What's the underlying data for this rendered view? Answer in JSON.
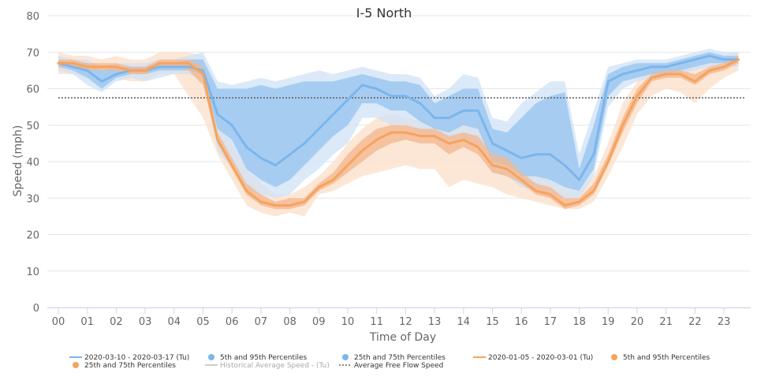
{
  "chart_data": {
    "type": "line",
    "title": "I-5 North",
    "xlabel": "Time of Day",
    "ylabel": "Speed (mph)",
    "xlim": [
      0,
      24
    ],
    "ylim": [
      0,
      80
    ],
    "yticks": [
      0,
      10,
      20,
      30,
      40,
      50,
      60,
      70,
      80
    ],
    "xtick_labels": [
      "00",
      "01",
      "02",
      "03",
      "04",
      "05",
      "06",
      "07",
      "08",
      "09",
      "10",
      "11",
      "12",
      "13",
      "14",
      "15",
      "16",
      "17",
      "18",
      "19",
      "20",
      "21",
      "22",
      "23"
    ],
    "grid": "horizontal",
    "reference_line": {
      "name": "Average Free Flow Speed",
      "value": 57.5,
      "color": "#666666"
    },
    "colors": {
      "blue": "#7cb5ec",
      "blue_band_outer": "#cfe2f6",
      "blue_band_inner": "#9cc8f0",
      "orange": "#f7a35c",
      "orange_band_outer": "#fbe1cc",
      "orange_band_inner": "#f4b891",
      "historical": "#cccccc"
    },
    "series": [
      {
        "name": "2020-03-10 - 2020-03-17 (Tu)",
        "color": "#7cb5ec",
        "x": [
          0,
          0.5,
          1,
          1.5,
          2,
          2.5,
          3,
          3.5,
          4,
          4.5,
          5,
          5.5,
          6,
          6.5,
          7,
          7.5,
          8,
          8.5,
          9,
          9.5,
          10,
          10.5,
          11,
          11.5,
          12,
          12.5,
          13,
          13.5,
          14,
          14.5,
          15,
          15.5,
          16,
          16.5,
          17,
          17.5,
          18,
          18.5,
          19,
          19.5,
          20,
          20.5,
          21,
          21.5,
          22,
          22.5,
          23,
          23.5
        ],
        "values": [
          67,
          66,
          65,
          62,
          64,
          65,
          65,
          66,
          66,
          66,
          65,
          53,
          50,
          44,
          41,
          39,
          42,
          45,
          49,
          53,
          57,
          61,
          60,
          58,
          58,
          56,
          52,
          52,
          54,
          54,
          45,
          43,
          41,
          42,
          42,
          39,
          35,
          42,
          62,
          64,
          65,
          66,
          66,
          67,
          68,
          69,
          68,
          68
        ],
        "p5": [
          65,
          64,
          61,
          59,
          62,
          63,
          62,
          63,
          64,
          64,
          62,
          43,
          38,
          32,
          31,
          30,
          31,
          35,
          38,
          42,
          45,
          52,
          52,
          50,
          50,
          48,
          46,
          44,
          46,
          44,
          37,
          36,
          33,
          32,
          31,
          30,
          30,
          36,
          55,
          60,
          62,
          63,
          63,
          64,
          65,
          66,
          66,
          66
        ],
        "p95": [
          69,
          68,
          68,
          66,
          67,
          67,
          67,
          68,
          68,
          69,
          70,
          62,
          61,
          62,
          63,
          62,
          63,
          64,
          65,
          64,
          65,
          66,
          65,
          64,
          64,
          63,
          58,
          60,
          64,
          63,
          52,
          51,
          56,
          59,
          62,
          62,
          42,
          54,
          66,
          67,
          68,
          68,
          68,
          69,
          70,
          71,
          70,
          70
        ],
        "p25": [
          66,
          65,
          63,
          60,
          63,
          64,
          64,
          65,
          65,
          65,
          64,
          49,
          46,
          38,
          35,
          33,
          35,
          39,
          43,
          47,
          50,
          56,
          56,
          54,
          54,
          51,
          49,
          48,
          50,
          49,
          40,
          39,
          36,
          36,
          35,
          33,
          32,
          38,
          58,
          62,
          63,
          64,
          64,
          65,
          66,
          67,
          67,
          67
        ],
        "p75": [
          68,
          67,
          67,
          65,
          66,
          66,
          66,
          67,
          67,
          68,
          68,
          60,
          60,
          60,
          61,
          60,
          61,
          62,
          62,
          62,
          63,
          64,
          63,
          62,
          62,
          61,
          56,
          58,
          60,
          60,
          49,
          48,
          52,
          56,
          58,
          59,
          38,
          50,
          64,
          66,
          67,
          67,
          67,
          68,
          69,
          70,
          69,
          69
        ]
      },
      {
        "name": "2020-01-05 - 2020-03-01 (Tu)",
        "color": "#f7a35c",
        "x": [
          0,
          0.5,
          1,
          1.5,
          2,
          2.5,
          3,
          3.5,
          4,
          4.5,
          5,
          5.5,
          6,
          6.5,
          7,
          7.5,
          8,
          8.5,
          9,
          9.5,
          10,
          10.5,
          11,
          11.5,
          12,
          12.5,
          13,
          13.5,
          14,
          14.5,
          15,
          15.5,
          16,
          16.5,
          17,
          17.5,
          18,
          18.5,
          19,
          19.5,
          20,
          20.5,
          21,
          21.5,
          22,
          22.5,
          23,
          23.5
        ],
        "values": [
          67,
          67,
          66,
          66,
          66,
          65,
          65,
          67,
          67,
          67,
          64,
          46,
          39,
          32,
          29,
          28,
          28,
          29,
          33,
          35,
          39,
          43,
          46,
          48,
          48,
          47,
          47,
          45,
          46,
          44,
          39,
          38,
          35,
          32,
          31,
          28,
          29,
          32,
          40,
          50,
          58,
          63,
          64,
          64,
          62,
          65,
          66,
          68
        ],
        "p5": [
          64,
          64,
          63,
          63,
          63,
          62,
          62,
          64,
          64,
          58,
          52,
          42,
          35,
          28,
          26,
          25,
          26,
          25,
          31,
          32,
          34,
          36,
          37,
          38,
          39,
          38,
          38,
          33,
          35,
          34,
          33,
          31,
          30,
          29,
          28,
          27,
          27,
          29,
          36,
          44,
          53,
          58,
          60,
          59,
          56,
          60,
          63,
          65
        ],
        "p95": [
          70,
          69,
          69,
          68,
          69,
          68,
          68,
          70,
          70,
          70,
          69,
          52,
          45,
          38,
          34,
          31,
          31,
          33,
          36,
          40,
          45,
          49,
          52,
          53,
          52,
          51,
          50,
          48,
          50,
          49,
          45,
          44,
          40,
          36,
          35,
          33,
          32,
          36,
          45,
          56,
          62,
          66,
          66,
          67,
          66,
          68,
          69,
          70
        ],
        "p25": [
          66,
          66,
          65,
          65,
          65,
          64,
          64,
          66,
          66,
          65,
          61,
          45,
          38,
          31,
          28,
          27,
          27,
          28,
          32,
          34,
          37,
          40,
          43,
          45,
          46,
          45,
          45,
          42,
          44,
          42,
          37,
          36,
          34,
          31,
          30,
          27,
          28,
          31,
          39,
          48,
          56,
          62,
          63,
          63,
          61,
          64,
          65,
          67
        ],
        "p75": [
          68,
          68,
          67,
          67,
          67,
          66,
          66,
          68,
          68,
          68,
          66,
          48,
          41,
          34,
          31,
          29,
          30,
          30,
          34,
          37,
          42,
          46,
          49,
          50,
          50,
          49,
          49,
          47,
          48,
          47,
          42,
          41,
          37,
          34,
          33,
          30,
          30,
          34,
          42,
          52,
          60,
          64,
          65,
          65,
          64,
          66,
          67,
          69
        ]
      }
    ],
    "legend": [
      {
        "label": "2020-03-10 - 2020-03-17 (Tu)",
        "type": "line",
        "color": "#7cb5ec"
      },
      {
        "label": "5th and 95th Percentiles",
        "type": "dot",
        "color": "#7cb5ec"
      },
      {
        "label": "25th and 75th Percentiles",
        "type": "dot",
        "color": "#7cb5ec"
      },
      {
        "label": "2020-01-05 - 2020-03-01 (Tu)",
        "type": "line",
        "color": "#f7a35c"
      },
      {
        "label": "5th and 95th Percentiles",
        "type": "dot",
        "color": "#f7a35c"
      },
      {
        "label": "25th and 75th Percentiles",
        "type": "dot",
        "color": "#f7a35c"
      },
      {
        "label": "Historical Average Speed - (Tu)",
        "type": "line",
        "color": "#cccccc",
        "muted": true
      },
      {
        "label": "Average Free Flow Speed",
        "type": "dotted",
        "color": "#666666"
      }
    ]
  }
}
